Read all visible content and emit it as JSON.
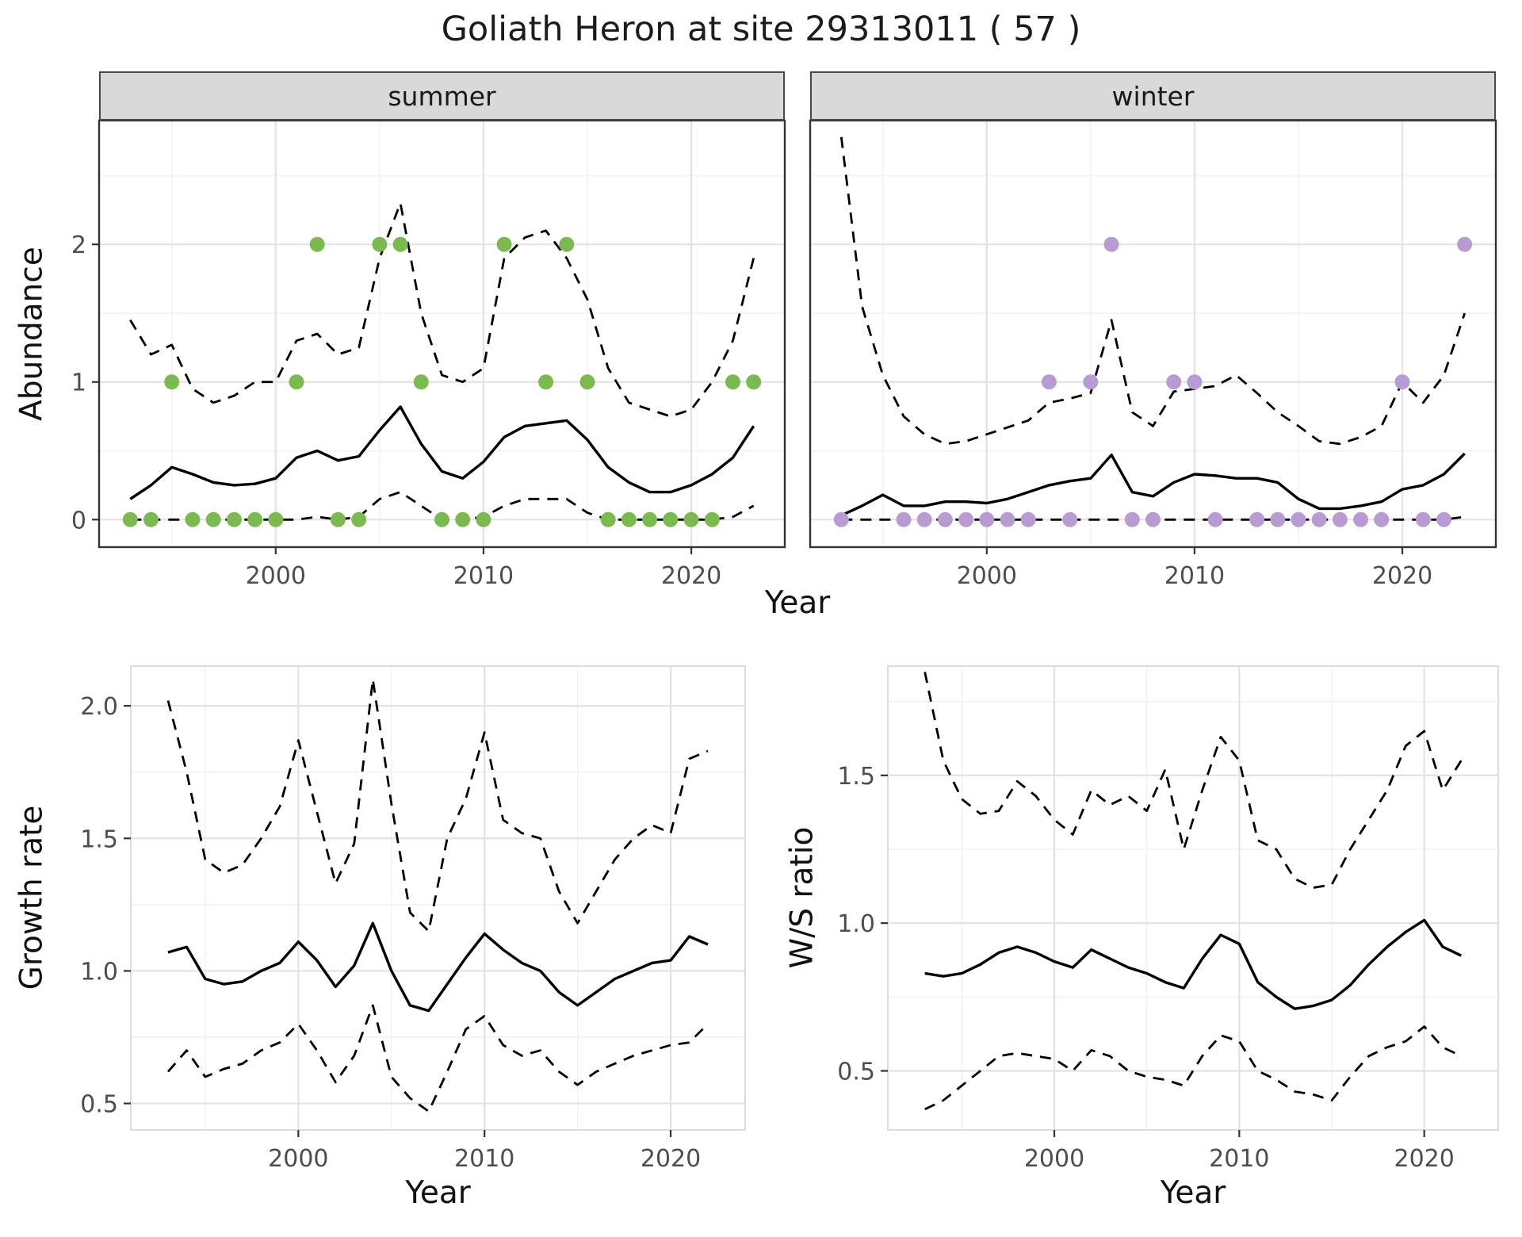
{
  "title": "Goliath Heron at site 29313011 ( 57 )",
  "facets": [
    {
      "label": "summer"
    },
    {
      "label": "winter"
    }
  ],
  "colors": {
    "summer_points": "#7cb950",
    "winter_points": "#b89bd0",
    "line": "#000000",
    "strip_background": "#d9d9d9",
    "strip_border": "#4a4a4a",
    "panel_border": "#333333",
    "panel_border_light": "#dcdcdc",
    "grid_major": "#e3e3e3",
    "grid_minor": "#f1f1f1",
    "tick": "#333333",
    "tick_label": "#4d4d4d"
  },
  "chart_data": [
    {
      "id": "abundance-summer",
      "type": "line",
      "facet": "summer",
      "xlabel": "Year",
      "ylabel": "Abundance",
      "x": [
        1993,
        1994,
        1995,
        1996,
        1997,
        1998,
        1999,
        2000,
        2001,
        2002,
        2003,
        2004,
        2005,
        2006,
        2007,
        2008,
        2009,
        2010,
        2011,
        2012,
        2013,
        2014,
        2015,
        2016,
        2017,
        2018,
        2019,
        2020,
        2021,
        2022,
        2023
      ],
      "series": [
        {
          "name": "observed summer counts",
          "role": "observed",
          "style": "points",
          "color": "#7cb950",
          "values": [
            0,
            0,
            1,
            0,
            0,
            0,
            0,
            0,
            1,
            2,
            0,
            0,
            2,
            2,
            1,
            0,
            0,
            0,
            2,
            null,
            1,
            2,
            1,
            0,
            0,
            0,
            0,
            0,
            0,
            1,
            1
          ]
        },
        {
          "name": "modelled abundance",
          "role": "mean",
          "style": "solid",
          "values": [
            0.15,
            0.25,
            0.38,
            0.33,
            0.27,
            0.25,
            0.26,
            0.3,
            0.45,
            0.5,
            0.43,
            0.46,
            0.65,
            0.82,
            0.55,
            0.35,
            0.3,
            0.42,
            0.6,
            0.68,
            0.7,
            0.72,
            0.58,
            0.38,
            0.27,
            0.2,
            0.2,
            0.25,
            0.33,
            0.45,
            0.68
          ]
        },
        {
          "name": "upper 95% CI",
          "role": "upper-ci",
          "style": "dashed",
          "values": [
            1.45,
            1.2,
            1.27,
            0.95,
            0.85,
            0.9,
            1.0,
            1.0,
            1.3,
            1.35,
            1.2,
            1.25,
            1.9,
            2.3,
            1.5,
            1.05,
            1.0,
            1.1,
            1.9,
            2.05,
            2.1,
            1.9,
            1.6,
            1.1,
            0.85,
            0.8,
            0.75,
            0.8,
            1.0,
            1.3,
            1.9
          ]
        },
        {
          "name": "lower 95% CI",
          "role": "lower-ci",
          "style": "dashed",
          "values": [
            0,
            0,
            0,
            0,
            0,
            0,
            0,
            0,
            0,
            0.02,
            0,
            0.02,
            0.15,
            0.2,
            0.1,
            0,
            0,
            0.02,
            0.1,
            0.15,
            0.15,
            0.15,
            0.05,
            0,
            0,
            0,
            0,
            0,
            0,
            0.02,
            0.1
          ]
        }
      ],
      "xlim": [
        1991.5,
        2024.5
      ],
      "ylim": [
        -0.2,
        2.9
      ],
      "xticks": [
        2000,
        2010,
        2020
      ],
      "xtick_labels": [
        "2000",
        "2010",
        "2020"
      ],
      "yticks": [
        0,
        1,
        2
      ],
      "ytick_labels": [
        "0",
        "1",
        "2"
      ],
      "grid": true,
      "legend": "none"
    },
    {
      "id": "abundance-winter",
      "type": "line",
      "facet": "winter",
      "xlabel": "Year",
      "ylabel": "Abundance",
      "x": [
        1993,
        1994,
        1995,
        1996,
        1997,
        1998,
        1999,
        2000,
        2001,
        2002,
        2003,
        2004,
        2005,
        2006,
        2007,
        2008,
        2009,
        2010,
        2011,
        2012,
        2013,
        2014,
        2015,
        2016,
        2017,
        2018,
        2019,
        2020,
        2021,
        2022,
        2023
      ],
      "series": [
        {
          "name": "observed winter counts",
          "role": "observed",
          "style": "points",
          "color": "#b89bd0",
          "values": [
            0,
            null,
            null,
            0,
            0,
            0,
            0,
            0,
            0,
            0,
            1,
            0,
            1,
            2,
            0,
            0,
            1,
            1,
            0,
            null,
            0,
            0,
            0,
            0,
            0,
            0,
            0,
            1,
            0,
            0,
            2
          ]
        },
        {
          "name": "modelled abundance",
          "role": "mean",
          "style": "solid",
          "values": [
            0.03,
            0.1,
            0.18,
            0.1,
            0.1,
            0.13,
            0.13,
            0.12,
            0.15,
            0.2,
            0.25,
            0.28,
            0.3,
            0.47,
            0.2,
            0.17,
            0.27,
            0.33,
            0.32,
            0.3,
            0.3,
            0.27,
            0.15,
            0.08,
            0.08,
            0.1,
            0.13,
            0.22,
            0.25,
            0.33,
            0.48
          ]
        },
        {
          "name": "upper 95% CI",
          "role": "upper-ci",
          "style": "dashed",
          "values": [
            2.78,
            1.55,
            1.05,
            0.75,
            0.62,
            0.55,
            0.57,
            0.62,
            0.67,
            0.72,
            0.85,
            0.88,
            0.92,
            1.45,
            0.78,
            0.68,
            0.93,
            0.95,
            0.97,
            1.05,
            0.92,
            0.78,
            0.68,
            0.57,
            0.55,
            0.6,
            0.68,
            1.0,
            0.85,
            1.05,
            1.5
          ]
        },
        {
          "name": "lower 95% CI",
          "role": "lower-ci",
          "style": "dashed",
          "values": [
            0,
            0,
            0,
            0,
            0,
            0,
            0,
            0,
            0,
            0,
            0,
            0,
            0,
            0,
            0,
            0,
            0,
            0,
            0,
            0,
            0,
            0,
            0,
            0,
            0,
            0,
            0,
            0,
            0,
            0,
            0.02
          ]
        }
      ],
      "xlim": [
        1991.5,
        2024.5
      ],
      "ylim": [
        -0.2,
        2.9
      ],
      "xticks": [
        2000,
        2010,
        2020
      ],
      "xtick_labels": [
        "2000",
        "2010",
        "2020"
      ],
      "yticks": [
        0,
        1,
        2
      ],
      "ytick_labels": [
        "0",
        "1",
        "2"
      ],
      "grid": true,
      "legend": "none"
    },
    {
      "id": "growth-rate",
      "type": "line",
      "xlabel": "Year",
      "ylabel": "Growth rate",
      "x": [
        1993,
        1994,
        1995,
        1996,
        1997,
        1998,
        1999,
        2000,
        2001,
        2002,
        2003,
        2004,
        2005,
        2006,
        2007,
        2008,
        2009,
        2010,
        2011,
        2012,
        2013,
        2014,
        2015,
        2016,
        2017,
        2018,
        2019,
        2020,
        2021,
        2022
      ],
      "series": [
        {
          "name": "growth rate",
          "role": "mean",
          "style": "solid",
          "values": [
            1.07,
            1.09,
            0.97,
            0.95,
            0.96,
            1.0,
            1.03,
            1.11,
            1.04,
            0.94,
            1.02,
            1.18,
            1.0,
            0.87,
            0.85,
            0.95,
            1.05,
            1.14,
            1.08,
            1.03,
            1.0,
            0.92,
            0.87,
            0.92,
            0.97,
            1.0,
            1.03,
            1.04,
            1.13,
            1.1
          ]
        },
        {
          "name": "upper 95% CI",
          "role": "upper-ci",
          "style": "dashed",
          "values": [
            2.02,
            1.75,
            1.42,
            1.37,
            1.4,
            1.5,
            1.62,
            1.87,
            1.6,
            1.33,
            1.48,
            2.1,
            1.63,
            1.22,
            1.15,
            1.5,
            1.65,
            1.9,
            1.57,
            1.52,
            1.5,
            1.3,
            1.18,
            1.3,
            1.42,
            1.5,
            1.55,
            1.52,
            1.8,
            1.83
          ]
        },
        {
          "name": "lower 95% CI",
          "role": "lower-ci",
          "style": "dashed",
          "values": [
            0.62,
            0.7,
            0.6,
            0.63,
            0.65,
            0.7,
            0.73,
            0.8,
            0.7,
            0.58,
            0.68,
            0.87,
            0.6,
            0.52,
            0.47,
            0.62,
            0.78,
            0.83,
            0.72,
            0.68,
            0.7,
            0.62,
            0.57,
            0.62,
            0.65,
            0.68,
            0.7,
            0.72,
            0.73,
            0.8
          ]
        }
      ],
      "xlim": [
        1991,
        2024
      ],
      "ylim": [
        0.4,
        2.15
      ],
      "xticks": [
        2000,
        2010,
        2020
      ],
      "xtick_labels": [
        "2000",
        "2010",
        "2020"
      ],
      "yticks": [
        0.5,
        1.0,
        1.5,
        2.0
      ],
      "ytick_labels": [
        "0.5",
        "1.0",
        "1.5",
        "2.0"
      ],
      "grid": true,
      "legend": "none"
    },
    {
      "id": "ws-ratio",
      "type": "line",
      "xlabel": "Year",
      "ylabel": "W/S ratio",
      "x": [
        1993,
        1994,
        1995,
        1996,
        1997,
        1998,
        1999,
        2000,
        2001,
        2002,
        2003,
        2004,
        2005,
        2006,
        2007,
        2008,
        2009,
        2010,
        2011,
        2012,
        2013,
        2014,
        2015,
        2016,
        2017,
        2018,
        2019,
        2020,
        2021,
        2022
      ],
      "series": [
        {
          "name": "winter/summer ratio",
          "role": "mean",
          "style": "solid",
          "values": [
            0.83,
            0.82,
            0.83,
            0.86,
            0.9,
            0.92,
            0.9,
            0.87,
            0.85,
            0.91,
            0.88,
            0.85,
            0.83,
            0.8,
            0.78,
            0.88,
            0.96,
            0.93,
            0.8,
            0.75,
            0.71,
            0.72,
            0.74,
            0.79,
            0.86,
            0.92,
            0.97,
            1.01,
            0.92,
            0.89
          ]
        },
        {
          "name": "upper 95% CI",
          "role": "upper-ci",
          "style": "dashed",
          "values": [
            1.85,
            1.55,
            1.42,
            1.37,
            1.38,
            1.48,
            1.43,
            1.35,
            1.3,
            1.45,
            1.4,
            1.43,
            1.38,
            1.52,
            1.25,
            1.45,
            1.63,
            1.55,
            1.28,
            1.25,
            1.15,
            1.12,
            1.13,
            1.25,
            1.35,
            1.45,
            1.6,
            1.65,
            1.45,
            1.55
          ]
        },
        {
          "name": "lower 95% CI",
          "role": "lower-ci",
          "style": "dashed",
          "values": [
            0.37,
            0.4,
            0.45,
            0.5,
            0.55,
            0.56,
            0.55,
            0.54,
            0.5,
            0.57,
            0.55,
            0.5,
            0.48,
            0.47,
            0.45,
            0.55,
            0.62,
            0.6,
            0.5,
            0.47,
            0.43,
            0.42,
            0.4,
            0.48,
            0.55,
            0.58,
            0.6,
            0.65,
            0.58,
            0.55
          ]
        }
      ],
      "xlim": [
        1991,
        2024
      ],
      "ylim": [
        0.3,
        1.87
      ],
      "xticks": [
        2000,
        2010,
        2020
      ],
      "xtick_labels": [
        "2000",
        "2010",
        "2020"
      ],
      "yticks": [
        0.5,
        1.0,
        1.5
      ],
      "ytick_labels": [
        "0.5",
        "1.0",
        "1.5"
      ],
      "grid": true,
      "legend": "none"
    }
  ]
}
